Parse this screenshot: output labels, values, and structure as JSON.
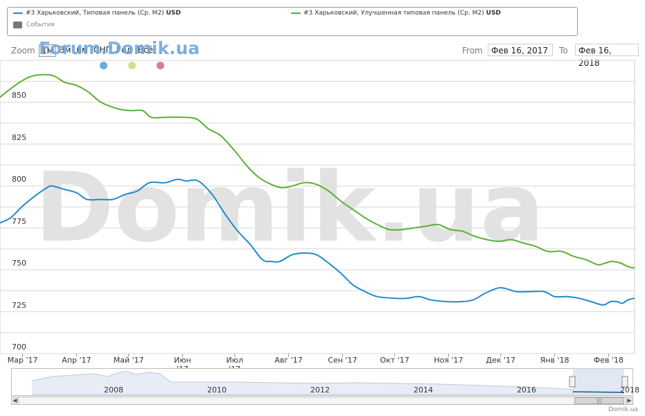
{
  "legend": {
    "series1_label": "#3 Харьковский, Типовая панель (Ср. М2)",
    "series1_unit": "USD",
    "series2_label": "#3 Харьковский, Улучшенная типовая панель (Ср. М2)",
    "series2_unit": "USD",
    "events_label": "События"
  },
  "toolbar": {
    "zoom_label": "Zoom",
    "zoom_buttons": [
      "1м",
      "3м",
      "6м",
      "СНГ",
      "Год",
      "Всё"
    ],
    "brand": "Forum.Domik.ua",
    "from_label": "From",
    "from_value": "Фев 16, 2017",
    "to_label": "To",
    "to_value": "Фев 16, 2018"
  },
  "event_flags": [
    "#6fa8dc",
    "#d6e08a",
    "#d97aa3"
  ],
  "watermark": "Domik.ua",
  "navigator": {
    "years": [
      "2008",
      "2010",
      "2012",
      "2014",
      "2016",
      "2018"
    ]
  },
  "credit": "Domik.ua",
  "colors": {
    "series1": "#1f8bc8",
    "series2": "#5ab132",
    "grid": "#d8d8d8",
    "watermark": "#e2e2e2"
  },
  "chart_data": {
    "type": "line",
    "xlabel": "",
    "ylabel": "",
    "x_ticks": [
      "Мар '17",
      "Апр '17",
      "Май '17",
      "Июн '17",
      "Июл '17",
      "Авг '17",
      "Сен '17",
      "Окт '17",
      "Ноя '17",
      "Дек '17",
      "Янв '18",
      "Фев '18"
    ],
    "yticks": [
      700,
      725,
      750,
      775,
      800,
      825,
      850
    ],
    "ylim": [
      700,
      875
    ],
    "grid": true,
    "legend_position": "top",
    "series": [
      {
        "name": "#3 Харьковский, Типовая панель (Ср. М2) USD",
        "points": [
          [
            "2017-02-16",
            778
          ],
          [
            "2017-02-22",
            781
          ],
          [
            "2017-03-01",
            788
          ],
          [
            "2017-03-08",
            794
          ],
          [
            "2017-03-15",
            799
          ],
          [
            "2017-03-18",
            800
          ],
          [
            "2017-03-25",
            798
          ],
          [
            "2017-04-01",
            796
          ],
          [
            "2017-04-07",
            792
          ],
          [
            "2017-04-15",
            792
          ],
          [
            "2017-04-22",
            792
          ],
          [
            "2017-04-29",
            795
          ],
          [
            "2017-05-06",
            797
          ],
          [
            "2017-05-13",
            802
          ],
          [
            "2017-05-22",
            802
          ],
          [
            "2017-05-29",
            804
          ],
          [
            "2017-06-03",
            803
          ],
          [
            "2017-06-10",
            803
          ],
          [
            "2017-06-18",
            795
          ],
          [
            "2017-06-25",
            784
          ],
          [
            "2017-07-02",
            774
          ],
          [
            "2017-07-10",
            765
          ],
          [
            "2017-07-17",
            756
          ],
          [
            "2017-07-22",
            755
          ],
          [
            "2017-07-27",
            755
          ],
          [
            "2017-08-03",
            759
          ],
          [
            "2017-08-10",
            760
          ],
          [
            "2017-08-17",
            759
          ],
          [
            "2017-08-24",
            754
          ],
          [
            "2017-08-31",
            748
          ],
          [
            "2017-09-07",
            741
          ],
          [
            "2017-09-14",
            737
          ],
          [
            "2017-09-21",
            734
          ],
          [
            "2017-10-01",
            733
          ],
          [
            "2017-10-08",
            733
          ],
          [
            "2017-10-15",
            734
          ],
          [
            "2017-10-22",
            732
          ],
          [
            "2017-11-01",
            731
          ],
          [
            "2017-11-08",
            731
          ],
          [
            "2017-11-15",
            732
          ],
          [
            "2017-11-22",
            736
          ],
          [
            "2017-11-29",
            739
          ],
          [
            "2017-12-03",
            739
          ],
          [
            "2017-12-10",
            737
          ],
          [
            "2017-12-17",
            737
          ],
          [
            "2017-12-26",
            737
          ],
          [
            "2018-01-01",
            734
          ],
          [
            "2018-01-08",
            734
          ],
          [
            "2018-01-15",
            733
          ],
          [
            "2018-01-22",
            731
          ],
          [
            "2018-01-29",
            729
          ],
          [
            "2018-02-02",
            731
          ],
          [
            "2018-02-06",
            731
          ],
          [
            "2018-02-09",
            730
          ],
          [
            "2018-02-12",
            732
          ],
          [
            "2018-02-16",
            733
          ]
        ]
      },
      {
        "name": "#3 Харьковский, Улучшенная типовая панель (Ср. М2) USD",
        "points": [
          [
            "2017-02-16",
            853
          ],
          [
            "2017-02-22",
            858
          ],
          [
            "2017-03-01",
            863
          ],
          [
            "2017-03-08",
            866
          ],
          [
            "2017-03-18",
            866
          ],
          [
            "2017-03-25",
            862
          ],
          [
            "2017-04-01",
            860
          ],
          [
            "2017-04-08",
            856
          ],
          [
            "2017-04-15",
            850
          ],
          [
            "2017-04-25",
            846
          ],
          [
            "2017-05-02",
            845
          ],
          [
            "2017-05-09",
            845
          ],
          [
            "2017-05-14",
            841
          ],
          [
            "2017-05-22",
            841
          ],
          [
            "2017-06-01",
            841
          ],
          [
            "2017-06-09",
            840
          ],
          [
            "2017-06-16",
            834
          ],
          [
            "2017-06-23",
            830
          ],
          [
            "2017-07-01",
            821
          ],
          [
            "2017-07-08",
            812
          ],
          [
            "2017-07-15",
            805
          ],
          [
            "2017-07-22",
            801
          ],
          [
            "2017-07-28",
            799
          ],
          [
            "2017-08-03",
            800
          ],
          [
            "2017-08-10",
            802
          ],
          [
            "2017-08-17",
            801
          ],
          [
            "2017-08-24",
            797
          ],
          [
            "2017-08-31",
            791
          ],
          [
            "2017-09-07",
            786
          ],
          [
            "2017-09-14",
            781
          ],
          [
            "2017-09-21",
            777
          ],
          [
            "2017-09-28",
            774
          ],
          [
            "2017-10-05",
            774
          ],
          [
            "2017-10-12",
            775
          ],
          [
            "2017-10-19",
            776
          ],
          [
            "2017-10-26",
            777
          ],
          [
            "2017-11-02",
            774
          ],
          [
            "2017-11-09",
            773
          ],
          [
            "2017-11-16",
            770
          ],
          [
            "2017-11-23",
            768
          ],
          [
            "2017-11-30",
            767
          ],
          [
            "2017-12-07",
            768
          ],
          [
            "2017-12-14",
            766
          ],
          [
            "2017-12-21",
            764
          ],
          [
            "2017-12-28",
            761
          ],
          [
            "2018-01-05",
            761
          ],
          [
            "2018-01-12",
            758
          ],
          [
            "2018-01-19",
            756
          ],
          [
            "2018-01-26",
            753
          ],
          [
            "2018-01-30",
            754
          ],
          [
            "2018-02-03",
            755
          ],
          [
            "2018-02-08",
            754
          ],
          [
            "2018-02-12",
            752
          ],
          [
            "2018-02-16",
            751
          ]
        ]
      }
    ]
  }
}
